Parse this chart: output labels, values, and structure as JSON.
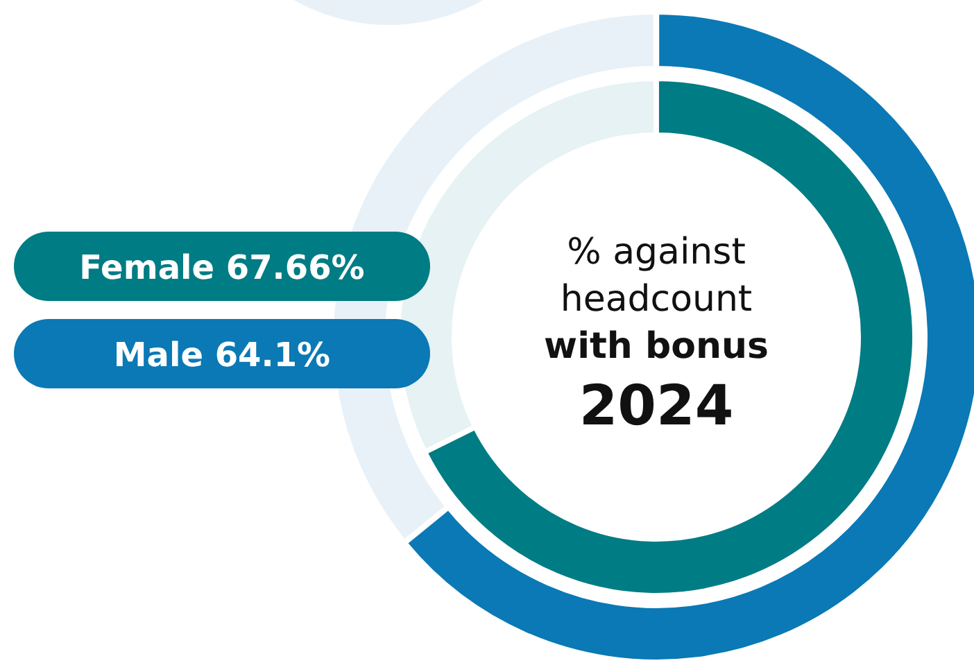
{
  "chart_data": {
    "type": "donut",
    "title": "% against headcount",
    "subtitle": "with bonus",
    "annotations": [
      "2024"
    ],
    "categories": [
      null,
      null
    ],
    "series": [
      {
        "name": "Female",
        "values": [
          67.66,
          32.34
        ],
        "colors": [
          "#007c84",
          "#e6f2f3"
        ],
        "value_labels": [
          "67.66%",
          null
        ]
      },
      {
        "name": "Male",
        "values": [
          64.1,
          35.9
        ],
        "colors": [
          "#0a79b5",
          "#e8f1f7"
        ],
        "value_labels": [
          "64.1%",
          null
        ]
      }
    ]
  }
}
